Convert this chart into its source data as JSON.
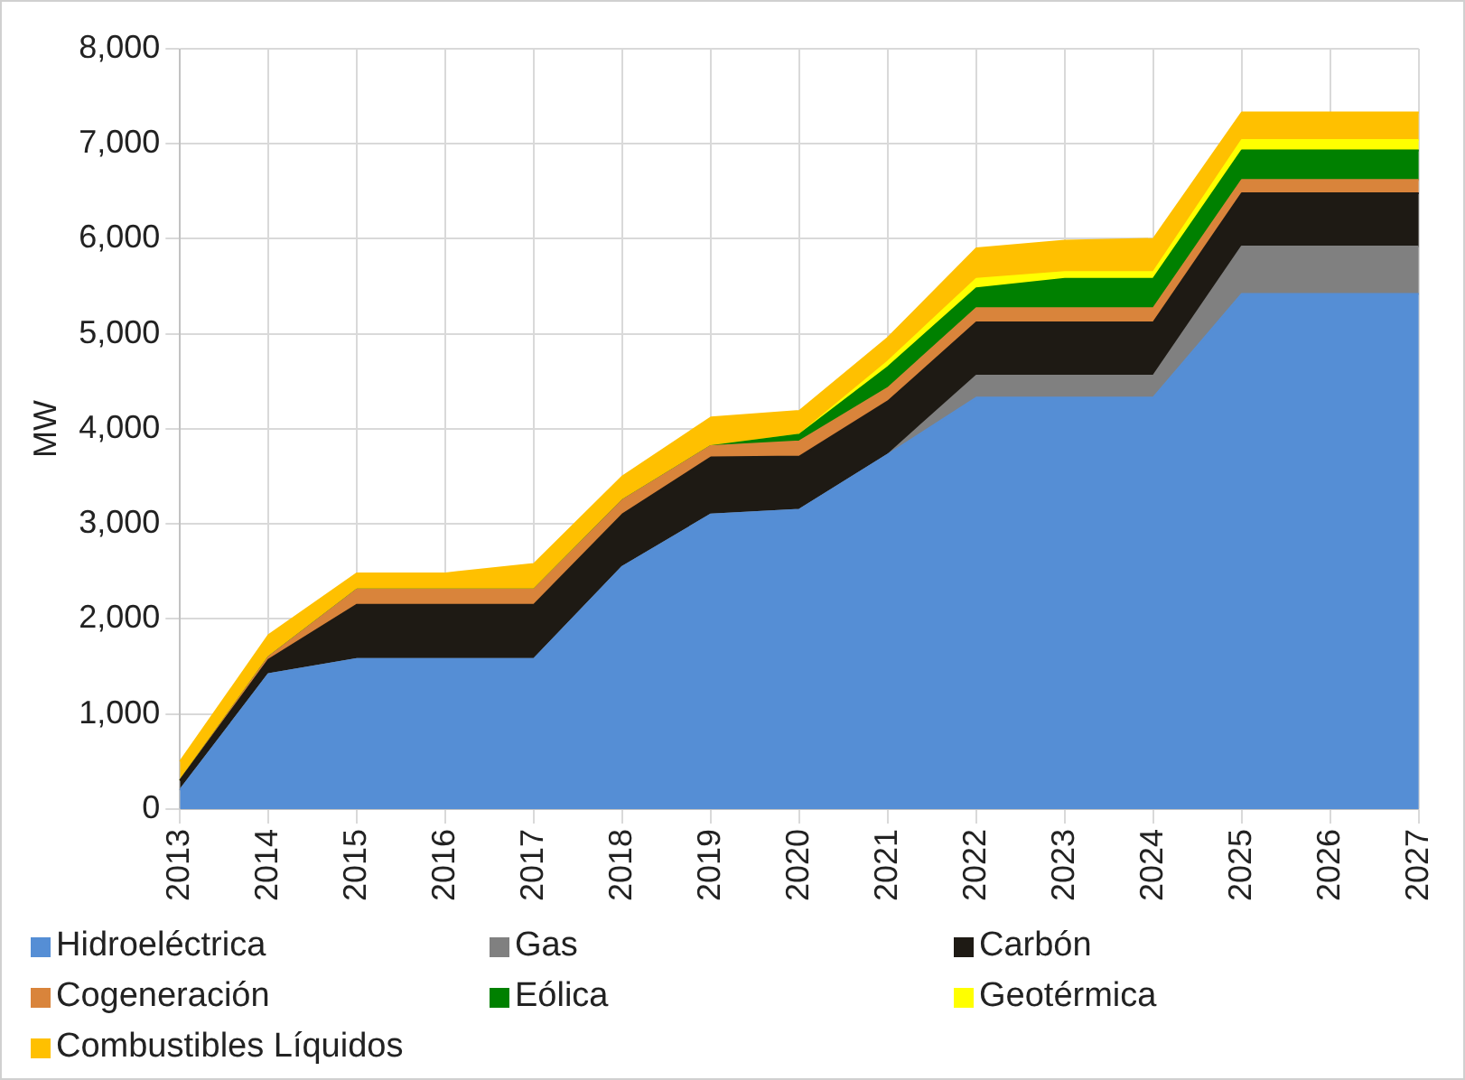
{
  "chart_data": {
    "type": "area",
    "stacked": true,
    "ylabel": "MW",
    "categories": [
      "2013",
      "2014",
      "2015",
      "2016",
      "2017",
      "2018",
      "2019",
      "2020",
      "2021",
      "2022",
      "2023",
      "2024",
      "2025",
      "2026",
      "2027"
    ],
    "series": [
      {
        "name": "Hidroeléctrica",
        "color": "#558ed5",
        "values": [
          200,
          1420,
          1580,
          1580,
          1580,
          2550,
          3100,
          3150,
          3730,
          4330,
          4330,
          4330,
          5420,
          5420,
          5420
        ]
      },
      {
        "name": "Gas",
        "color": "#808080",
        "values": [
          0,
          0,
          0,
          0,
          0,
          0,
          0,
          0,
          0,
          230,
          230,
          230,
          500,
          500,
          500
        ]
      },
      {
        "name": "Carbón",
        "color": "#1e1a14",
        "values": [
          100,
          150,
          570,
          570,
          570,
          550,
          600,
          560,
          560,
          560,
          560,
          560,
          560,
          560,
          560
        ]
      },
      {
        "name": "Cogeneración",
        "color": "#d9843b",
        "values": [
          0,
          30,
          160,
          160,
          160,
          150,
          120,
          160,
          140,
          150,
          150,
          150,
          140,
          140,
          140
        ]
      },
      {
        "name": "Eólica",
        "color": "#008000",
        "values": [
          0,
          0,
          0,
          0,
          0,
          0,
          0,
          70,
          220,
          210,
          310,
          310,
          310,
          310,
          310
        ]
      },
      {
        "name": "Geotérmica",
        "color": "#ffff00",
        "values": [
          0,
          0,
          0,
          0,
          0,
          0,
          0,
          0,
          60,
          100,
          70,
          70,
          110,
          110,
          110
        ]
      },
      {
        "name": "Combustibles Líquidos",
        "color": "#ffc000",
        "values": [
          200,
          230,
          170,
          170,
          270,
          250,
          300,
          250,
          250,
          320,
          330,
          350,
          290,
          290,
          290
        ]
      }
    ],
    "ylim": [
      0,
      8000
    ],
    "yticks": [
      0,
      {
        "value": 1000,
        "label": "1,000"
      },
      {
        "value": 2000,
        "label": "2,000"
      },
      {
        "value": 3000,
        "label": "3,000"
      },
      {
        "value": 4000,
        "label": "4,000"
      },
      {
        "value": 5000,
        "label": "5,000"
      },
      {
        "value": 6000,
        "label": "6,000"
      },
      {
        "value": 7000,
        "label": "7,000"
      },
      {
        "value": 8000,
        "label": "8,000"
      }
    ],
    "grid": true,
    "legend": "bottom"
  }
}
